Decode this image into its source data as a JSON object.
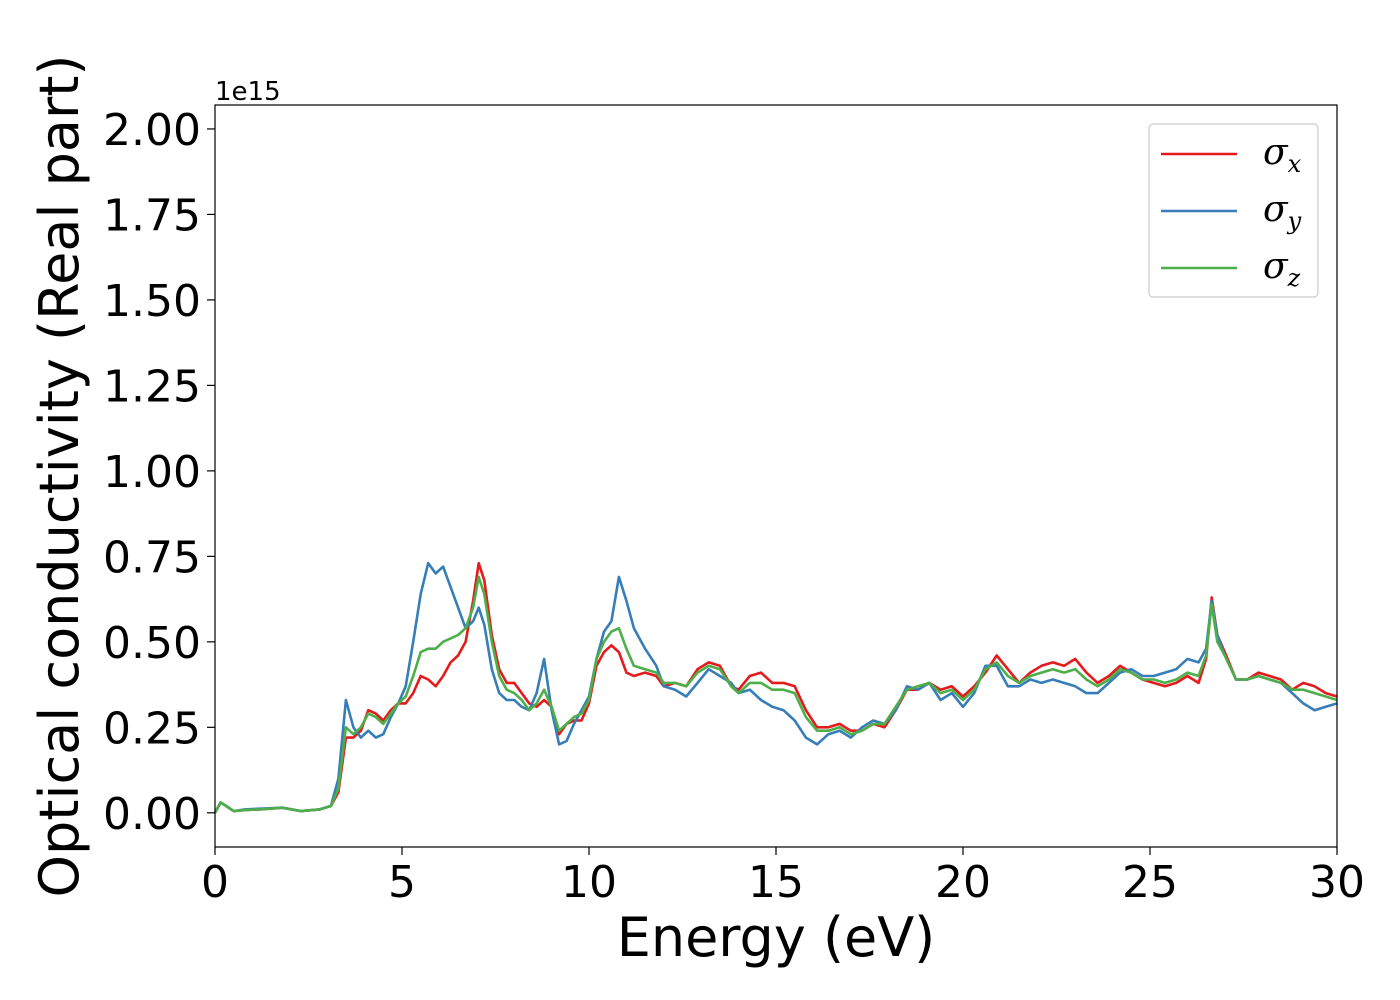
{
  "chart_data": {
    "type": "line",
    "xlabel": "Energy (eV)",
    "ylabel": "Optical conductivity (Real part)",
    "y_offset_text": "1e15",
    "xlim": [
      0,
      30
    ],
    "ylim": [
      -0.1,
      2.07
    ],
    "x_ticks": [
      0,
      5,
      10,
      15,
      20,
      25,
      30
    ],
    "x_tick_labels": [
      "0",
      "5",
      "10",
      "15",
      "20",
      "25",
      "30"
    ],
    "y_ticks": [
      0.0,
      0.25,
      0.5,
      0.75,
      1.0,
      1.25,
      1.5,
      1.75,
      2.0
    ],
    "y_tick_labels": [
      "0.00",
      "0.25",
      "0.50",
      "0.75",
      "1.00",
      "1.25",
      "1.50",
      "1.75",
      "2.00"
    ],
    "grid": false,
    "legend_position": "top-right",
    "colors": {
      "sigma_x": "#e41a1c",
      "sigma_y": "#377eb8",
      "sigma_z": "#4daf4a"
    },
    "series": [
      {
        "id": "sigma_x",
        "name_symbol": "σ",
        "name_subscript": "x",
        "x": [
          0,
          0.15,
          0.3,
          0.5,
          0.8,
          1.2,
          1.8,
          2.3,
          2.8,
          3.1,
          3.3,
          3.5,
          3.7,
          3.9,
          4.1,
          4.3,
          4.5,
          4.7,
          4.9,
          5.1,
          5.3,
          5.5,
          5.7,
          5.9,
          6.1,
          6.3,
          6.5,
          6.7,
          6.9,
          7.05,
          7.2,
          7.4,
          7.6,
          7.8,
          8.0,
          8.2,
          8.4,
          8.6,
          8.8,
          9.0,
          9.2,
          9.4,
          9.6,
          9.8,
          10.0,
          10.2,
          10.4,
          10.6,
          10.8,
          11.0,
          11.2,
          11.5,
          11.8,
          12.0,
          12.3,
          12.6,
          12.9,
          13.2,
          13.5,
          13.8,
          14.0,
          14.3,
          14.6,
          14.9,
          15.2,
          15.5,
          15.8,
          16.1,
          16.4,
          16.7,
          17.0,
          17.3,
          17.6,
          17.9,
          18.2,
          18.5,
          18.8,
          19.1,
          19.4,
          19.7,
          20.0,
          20.3,
          20.6,
          20.9,
          21.2,
          21.5,
          21.8,
          22.1,
          22.4,
          22.7,
          23.0,
          23.3,
          23.6,
          23.9,
          24.2,
          24.5,
          24.8,
          25.1,
          25.4,
          25.7,
          26.0,
          26.3,
          26.5,
          26.65,
          26.8,
          27.0,
          27.3,
          27.6,
          27.9,
          28.2,
          28.5,
          28.8,
          29.1,
          29.4,
          29.7,
          30.0
        ],
        "y": [
          0.0,
          0.03,
          0.02,
          0.005,
          0.008,
          0.01,
          0.015,
          0.005,
          0.01,
          0.02,
          0.06,
          0.22,
          0.22,
          0.24,
          0.3,
          0.29,
          0.27,
          0.3,
          0.32,
          0.32,
          0.35,
          0.4,
          0.39,
          0.37,
          0.4,
          0.44,
          0.46,
          0.5,
          0.62,
          0.73,
          0.68,
          0.52,
          0.42,
          0.38,
          0.38,
          0.35,
          0.32,
          0.31,
          0.33,
          0.31,
          0.23,
          0.26,
          0.27,
          0.27,
          0.32,
          0.43,
          0.47,
          0.49,
          0.47,
          0.41,
          0.4,
          0.41,
          0.4,
          0.37,
          0.38,
          0.37,
          0.42,
          0.44,
          0.43,
          0.37,
          0.36,
          0.4,
          0.41,
          0.38,
          0.38,
          0.37,
          0.3,
          0.25,
          0.25,
          0.26,
          0.24,
          0.24,
          0.26,
          0.25,
          0.3,
          0.36,
          0.36,
          0.38,
          0.36,
          0.37,
          0.34,
          0.37,
          0.41,
          0.46,
          0.42,
          0.38,
          0.41,
          0.43,
          0.44,
          0.43,
          0.45,
          0.41,
          0.38,
          0.4,
          0.43,
          0.41,
          0.39,
          0.38,
          0.37,
          0.38,
          0.4,
          0.38,
          0.45,
          0.63,
          0.52,
          0.47,
          0.39,
          0.39,
          0.41,
          0.4,
          0.39,
          0.36,
          0.38,
          0.37,
          0.35,
          0.34
        ]
      },
      {
        "id": "sigma_y",
        "name_symbol": "σ",
        "name_subscript": "y",
        "x": [
          0,
          0.15,
          0.3,
          0.5,
          0.8,
          1.2,
          1.8,
          2.3,
          2.8,
          3.1,
          3.3,
          3.5,
          3.7,
          3.9,
          4.1,
          4.3,
          4.5,
          4.7,
          4.9,
          5.1,
          5.3,
          5.5,
          5.7,
          5.9,
          6.1,
          6.3,
          6.5,
          6.7,
          6.9,
          7.05,
          7.2,
          7.4,
          7.6,
          7.8,
          8.0,
          8.2,
          8.4,
          8.6,
          8.8,
          9.0,
          9.2,
          9.4,
          9.6,
          9.8,
          10.0,
          10.2,
          10.4,
          10.6,
          10.8,
          11.0,
          11.2,
          11.5,
          11.8,
          12.0,
          12.3,
          12.6,
          12.9,
          13.2,
          13.5,
          13.8,
          14.0,
          14.3,
          14.6,
          14.9,
          15.2,
          15.5,
          15.8,
          16.1,
          16.4,
          16.7,
          17.0,
          17.3,
          17.6,
          17.9,
          18.2,
          18.5,
          18.8,
          19.1,
          19.4,
          19.7,
          20.0,
          20.3,
          20.6,
          20.9,
          21.2,
          21.5,
          21.8,
          22.1,
          22.4,
          22.7,
          23.0,
          23.3,
          23.6,
          23.9,
          24.2,
          24.5,
          24.8,
          25.1,
          25.4,
          25.7,
          26.0,
          26.3,
          26.5,
          26.65,
          26.8,
          27.0,
          27.3,
          27.6,
          27.9,
          28.2,
          28.5,
          28.8,
          29.1,
          29.4,
          29.7,
          30.0
        ],
        "y": [
          0.0,
          0.03,
          0.02,
          0.005,
          0.01,
          0.012,
          0.015,
          0.005,
          0.01,
          0.02,
          0.1,
          0.33,
          0.25,
          0.22,
          0.24,
          0.22,
          0.23,
          0.28,
          0.32,
          0.37,
          0.5,
          0.64,
          0.73,
          0.7,
          0.72,
          0.66,
          0.6,
          0.54,
          0.56,
          0.6,
          0.55,
          0.42,
          0.35,
          0.33,
          0.33,
          0.31,
          0.3,
          0.35,
          0.45,
          0.3,
          0.2,
          0.21,
          0.26,
          0.3,
          0.34,
          0.45,
          0.53,
          0.56,
          0.69,
          0.62,
          0.54,
          0.48,
          0.43,
          0.37,
          0.36,
          0.34,
          0.38,
          0.42,
          0.4,
          0.38,
          0.35,
          0.36,
          0.33,
          0.31,
          0.3,
          0.27,
          0.22,
          0.2,
          0.23,
          0.24,
          0.22,
          0.25,
          0.27,
          0.26,
          0.3,
          0.37,
          0.36,
          0.38,
          0.33,
          0.35,
          0.31,
          0.35,
          0.43,
          0.43,
          0.37,
          0.37,
          0.39,
          0.38,
          0.39,
          0.38,
          0.37,
          0.35,
          0.35,
          0.38,
          0.41,
          0.42,
          0.4,
          0.4,
          0.41,
          0.42,
          0.45,
          0.44,
          0.48,
          0.62,
          0.52,
          0.46,
          0.39,
          0.39,
          0.4,
          0.39,
          0.38,
          0.35,
          0.32,
          0.3,
          0.31,
          0.32
        ]
      },
      {
        "id": "sigma_z",
        "name_symbol": "σ",
        "name_subscript": "z",
        "x": [
          0,
          0.15,
          0.3,
          0.5,
          0.8,
          1.2,
          1.8,
          2.3,
          2.8,
          3.1,
          3.3,
          3.5,
          3.7,
          3.9,
          4.1,
          4.3,
          4.5,
          4.7,
          4.9,
          5.1,
          5.3,
          5.5,
          5.7,
          5.9,
          6.1,
          6.3,
          6.5,
          6.7,
          6.9,
          7.05,
          7.2,
          7.4,
          7.6,
          7.8,
          8.0,
          8.2,
          8.4,
          8.6,
          8.8,
          9.0,
          9.2,
          9.4,
          9.6,
          9.8,
          10.0,
          10.2,
          10.4,
          10.6,
          10.8,
          11.0,
          11.2,
          11.5,
          11.8,
          12.0,
          12.3,
          12.6,
          12.9,
          13.2,
          13.5,
          13.8,
          14.0,
          14.3,
          14.6,
          14.9,
          15.2,
          15.5,
          15.8,
          16.1,
          16.4,
          16.7,
          17.0,
          17.3,
          17.6,
          17.9,
          18.2,
          18.5,
          18.8,
          19.1,
          19.4,
          19.7,
          20.0,
          20.3,
          20.6,
          20.9,
          21.2,
          21.5,
          21.8,
          22.1,
          22.4,
          22.7,
          23.0,
          23.3,
          23.6,
          23.9,
          24.2,
          24.5,
          24.8,
          25.1,
          25.4,
          25.7,
          26.0,
          26.3,
          26.5,
          26.65,
          26.8,
          27.0,
          27.3,
          27.6,
          27.9,
          28.2,
          28.5,
          28.8,
          29.1,
          29.4,
          29.7,
          30.0
        ],
        "y": [
          0.0,
          0.03,
          0.02,
          0.005,
          0.008,
          0.01,
          0.015,
          0.005,
          0.01,
          0.02,
          0.07,
          0.25,
          0.23,
          0.25,
          0.29,
          0.28,
          0.26,
          0.29,
          0.32,
          0.34,
          0.4,
          0.47,
          0.48,
          0.48,
          0.5,
          0.51,
          0.52,
          0.54,
          0.6,
          0.69,
          0.64,
          0.5,
          0.4,
          0.36,
          0.35,
          0.33,
          0.3,
          0.32,
          0.36,
          0.31,
          0.24,
          0.26,
          0.28,
          0.29,
          0.33,
          0.45,
          0.5,
          0.53,
          0.54,
          0.48,
          0.43,
          0.42,
          0.41,
          0.38,
          0.38,
          0.37,
          0.41,
          0.43,
          0.42,
          0.37,
          0.35,
          0.38,
          0.38,
          0.36,
          0.36,
          0.35,
          0.28,
          0.24,
          0.24,
          0.25,
          0.23,
          0.24,
          0.26,
          0.26,
          0.31,
          0.36,
          0.37,
          0.38,
          0.35,
          0.36,
          0.33,
          0.36,
          0.42,
          0.44,
          0.4,
          0.38,
          0.4,
          0.41,
          0.42,
          0.41,
          0.42,
          0.39,
          0.37,
          0.39,
          0.42,
          0.41,
          0.39,
          0.39,
          0.38,
          0.39,
          0.41,
          0.4,
          0.46,
          0.61,
          0.5,
          0.46,
          0.39,
          0.39,
          0.4,
          0.39,
          0.38,
          0.36,
          0.36,
          0.35,
          0.34,
          0.33
        ]
      }
    ]
  }
}
